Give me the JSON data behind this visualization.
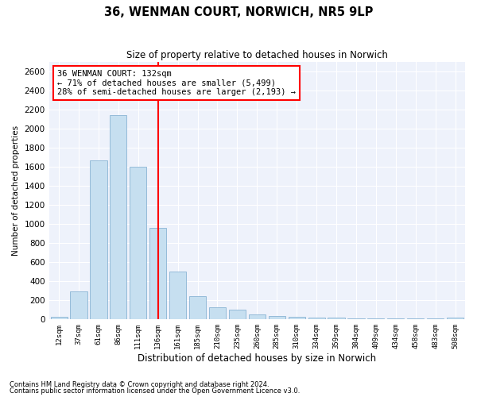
{
  "title_line1": "36, WENMAN COURT, NORWICH, NR5 9LP",
  "title_line2": "Size of property relative to detached houses in Norwich",
  "xlabel": "Distribution of detached houses by size in Norwich",
  "ylabel": "Number of detached properties",
  "bar_color": "#c6dff0",
  "bar_edge_color": "#8ab4d4",
  "background_color": "#eef2fb",
  "grid_color": "#ffffff",
  "vline_color": "red",
  "annotation_line1": "36 WENMAN COURT: 132sqm",
  "annotation_line2": "← 71% of detached houses are smaller (5,499)",
  "annotation_line3": "28% of semi-detached houses are larger (2,193) →",
  "footnote1": "Contains HM Land Registry data © Crown copyright and database right 2024.",
  "footnote2": "Contains public sector information licensed under the Open Government Licence v3.0.",
  "categories": [
    "12sqm",
    "37sqm",
    "61sqm",
    "86sqm",
    "111sqm",
    "136sqm",
    "161sqm",
    "185sqm",
    "210sqm",
    "235sqm",
    "260sqm",
    "285sqm",
    "310sqm",
    "334sqm",
    "359sqm",
    "384sqm",
    "409sqm",
    "434sqm",
    "458sqm",
    "483sqm",
    "508sqm"
  ],
  "values": [
    20,
    290,
    1670,
    2140,
    1600,
    960,
    500,
    240,
    120,
    100,
    50,
    35,
    20,
    15,
    12,
    10,
    8,
    5,
    5,
    5,
    15
  ],
  "ylim": [
    0,
    2700
  ],
  "yticks": [
    0,
    200,
    400,
    600,
    800,
    1000,
    1200,
    1400,
    1600,
    1800,
    2000,
    2200,
    2400,
    2600
  ],
  "vline_idx": 5
}
